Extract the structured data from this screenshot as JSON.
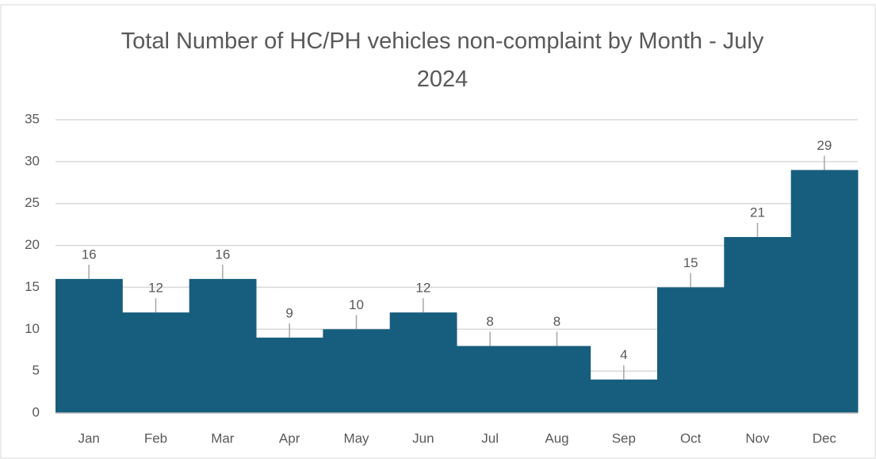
{
  "chart_data": {
    "type": "bar",
    "title": "Total Number of HC/PH vehicles non-complaint by Month - July 2024",
    "categories": [
      "Jan",
      "Feb",
      "Mar",
      "Apr",
      "May",
      "Jun",
      "Jul",
      "Aug",
      "Sep",
      "Oct",
      "Nov",
      "Dec"
    ],
    "values": [
      16,
      12,
      16,
      9,
      10,
      12,
      8,
      8,
      4,
      15,
      21,
      29
    ],
    "color": "#175e7e",
    "ylim": [
      0,
      35
    ],
    "yticks": [
      0,
      5,
      10,
      15,
      20,
      25,
      30,
      35
    ],
    "grid": true
  }
}
